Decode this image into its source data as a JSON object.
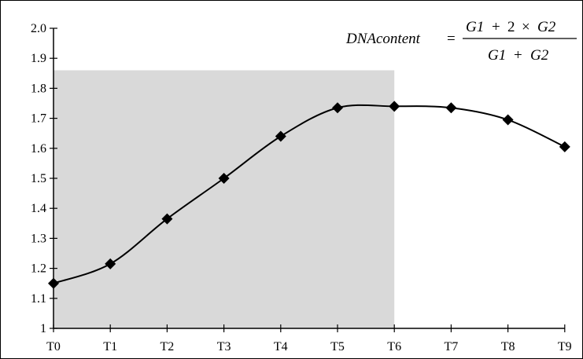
{
  "chart_data": {
    "type": "line",
    "title": "",
    "xlabel": "",
    "ylabel": "",
    "categories": [
      "T0",
      "T1",
      "T2",
      "T3",
      "T4",
      "T5",
      "T6",
      "T7",
      "T8",
      "T9"
    ],
    "series": [
      {
        "values": [
          1.15,
          1.215,
          1.365,
          1.5,
          1.64,
          1.735,
          1.74,
          1.735,
          1.695,
          1.605
        ]
      }
    ],
    "ylim": [
      1.0,
      2.0
    ],
    "yticks": [
      1,
      1.1,
      1.2,
      1.3,
      1.4,
      1.5,
      1.6,
      1.7,
      1.8,
      1.9,
      2.0
    ],
    "ytick_labels": [
      "1",
      "1.1",
      "1.2",
      "1.3",
      "1.4",
      "1.5",
      "1.6",
      "1.7",
      "1.8",
      "1.9",
      "2.0"
    ],
    "shaded_region": {
      "x_from": "T0",
      "x_to": "T6",
      "y_top": 1.86,
      "color": "#d9d9d9"
    },
    "marker": "diamond",
    "line_color": "#000000",
    "smooth": true,
    "grid": false,
    "annotation": {
      "lhs": "DNAcontent",
      "equals": "=",
      "numerator": {
        "a": "G1",
        "plus": "+",
        "coef": "2",
        "times": "×",
        "b": "G2"
      },
      "denominator": {
        "a": "G1",
        "plus": "+",
        "b": "G2"
      }
    }
  }
}
